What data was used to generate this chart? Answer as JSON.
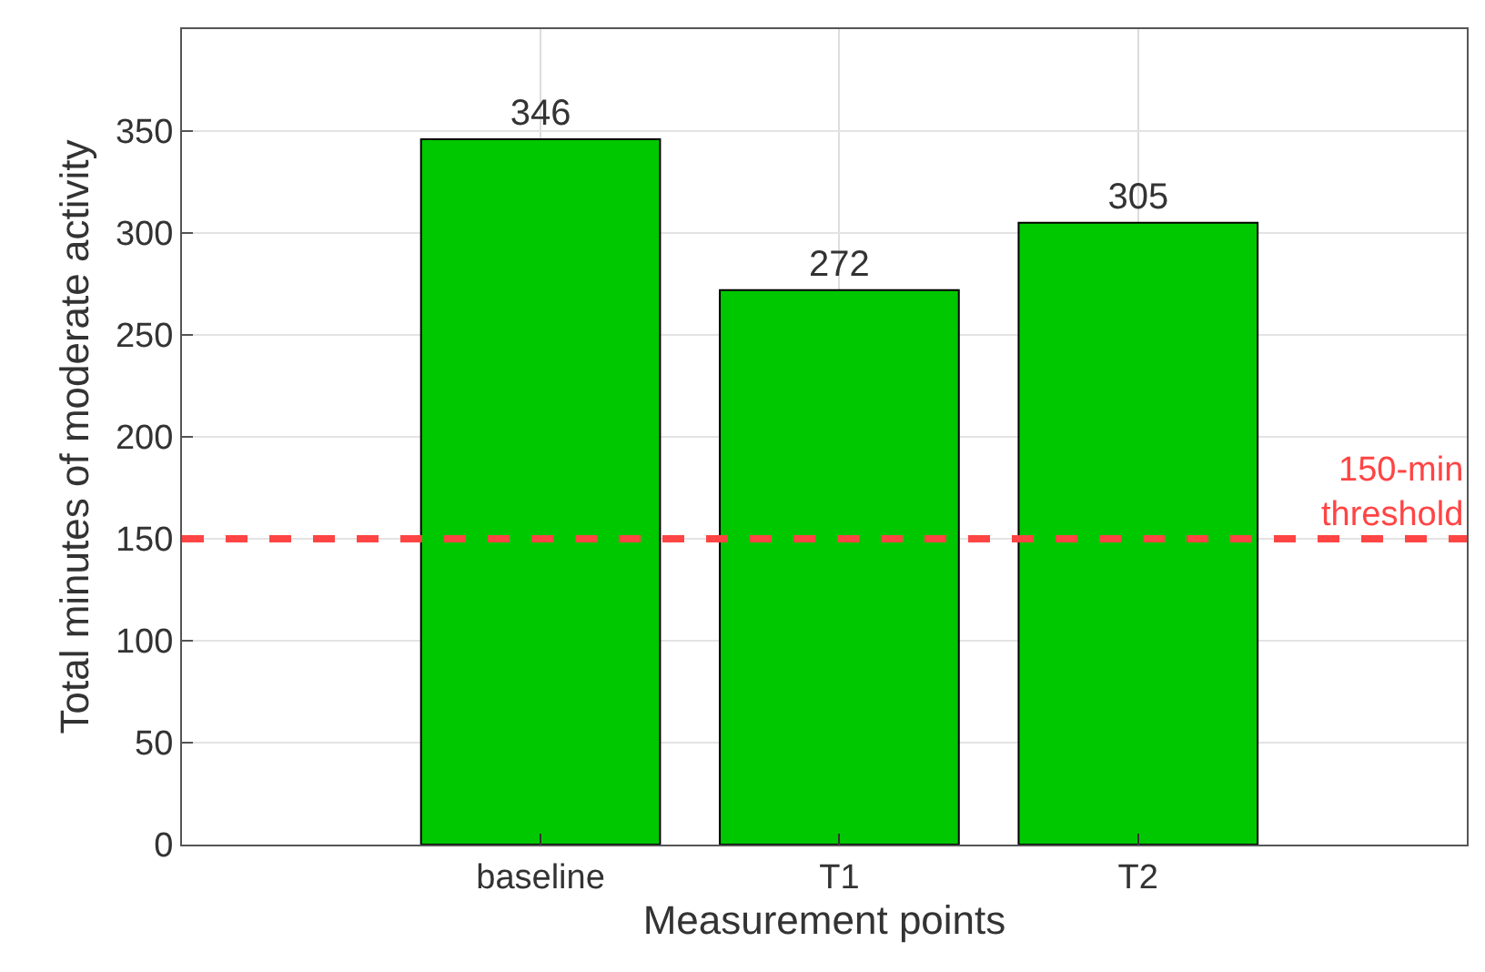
{
  "chart_data": {
    "type": "bar",
    "xlabel": "Measurement points",
    "ylabel": "Total minutes of moderate activity",
    "categories": [
      "baseline",
      "T1",
      "T2"
    ],
    "series": [
      {
        "color": "#00c800",
        "values": [
          346,
          272,
          305
        ]
      }
    ],
    "ylim": [
      0,
      400
    ],
    "yticks": [
      0,
      50,
      100,
      150,
      200,
      250,
      300,
      350
    ],
    "ref_lines": [
      {
        "axis": "y",
        "value": 150,
        "label": "150-min\nthreshold",
        "color": "#ff4444",
        "line_style": "dashed"
      }
    ],
    "data_labels": true,
    "grid": true
  }
}
